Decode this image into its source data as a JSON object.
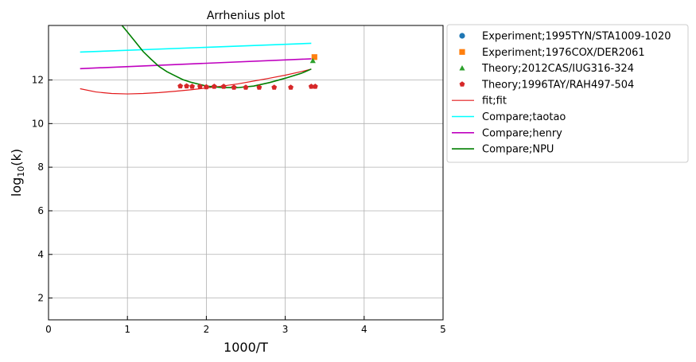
{
  "chart_data": {
    "type": "line",
    "title": "Arrhenius plot",
    "xlabel": "1000/T",
    "ylabel_base": "log",
    "ylabel_sub": "10",
    "ylabel_tail": "(k)",
    "xlim": [
      0,
      5
    ],
    "ylim": [
      1,
      14.5
    ],
    "xticks": [
      0,
      1,
      2,
      3,
      4,
      5
    ],
    "yticks": [
      2,
      4,
      6,
      8,
      10,
      12
    ],
    "grid": true,
    "legend_position": "outside-right",
    "series": [
      {
        "name": "Experiment;1995TYN/STA1009-1020",
        "kind": "scatter",
        "marker": "circle",
        "color": "#1f77b4",
        "x": [],
        "y": []
      },
      {
        "name": "Experiment;1976COX/DER2061",
        "kind": "scatter",
        "marker": "square",
        "color": "#ff7f0e",
        "x": [
          3.37
        ],
        "y": [
          13.05
        ]
      },
      {
        "name": "Theory;2012CAS/IUG316-324",
        "kind": "scatter",
        "marker": "triangle",
        "color": "#2ca02c",
        "x": [
          3.35
        ],
        "y": [
          12.88
        ]
      },
      {
        "name": "Theory;1996TAY/RAH497-504",
        "kind": "scatter",
        "marker": "pentagon",
        "color": "#d62728",
        "x": [
          1.67,
          1.75,
          1.82,
          1.92,
          2.0,
          2.1,
          2.22,
          2.35,
          2.5,
          2.67,
          2.86,
          3.07,
          3.33,
          3.38
        ],
        "y": [
          11.72,
          11.72,
          11.7,
          11.7,
          11.68,
          11.7,
          11.7,
          11.66,
          11.66,
          11.66,
          11.66,
          11.66,
          11.7,
          11.7
        ]
      },
      {
        "name": "fit;fit",
        "kind": "line",
        "color": "#e31a1c",
        "width": 1.2,
        "x": [
          0.4,
          0.6,
          0.8,
          1.0,
          1.2,
          1.4,
          1.6,
          1.8,
          2.0,
          2.2,
          2.4,
          2.6,
          2.8,
          3.0,
          3.2,
          3.33
        ],
        "y": [
          11.6,
          11.45,
          11.38,
          11.36,
          11.38,
          11.42,
          11.48,
          11.55,
          11.63,
          11.72,
          11.82,
          11.95,
          12.08,
          12.22,
          12.38,
          12.5
        ]
      },
      {
        "name": "Compare;taotao",
        "kind": "line",
        "color": "#00ffff",
        "width": 1.6,
        "x": [
          0.4,
          3.33
        ],
        "y": [
          13.28,
          13.68
        ]
      },
      {
        "name": "Compare;henry",
        "kind": "line",
        "color": "#bf00bf",
        "width": 1.6,
        "x": [
          0.4,
          3.33
        ],
        "y": [
          12.52,
          12.97
        ]
      },
      {
        "name": "Compare;NPU",
        "kind": "line",
        "color": "#007f00",
        "width": 1.6,
        "x": [
          0.92,
          1.0,
          1.1,
          1.2,
          1.3,
          1.4,
          1.5,
          1.6,
          1.7,
          1.8,
          2.0,
          2.2,
          2.4,
          2.6,
          2.8,
          3.0,
          3.2,
          3.33
        ],
        "y": [
          14.55,
          14.2,
          13.75,
          13.3,
          12.95,
          12.62,
          12.38,
          12.2,
          12.02,
          11.9,
          11.72,
          11.65,
          11.65,
          11.72,
          11.88,
          12.08,
          12.3,
          12.5
        ]
      }
    ]
  }
}
